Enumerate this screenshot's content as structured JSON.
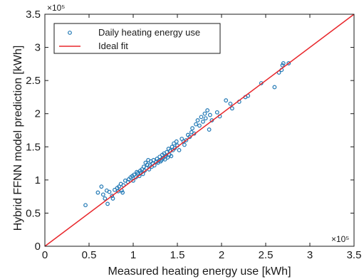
{
  "chart_data": {
    "type": "scatter",
    "xlabel": "Measured heating energy use [kWh]",
    "ylabel": "Hybrid FFNN model prediction [kWh]",
    "xlim": [
      0,
      3.5
    ],
    "ylim": [
      0,
      3.5
    ],
    "x_ticks": [
      "0",
      "0.5",
      "1",
      "1.5",
      "2",
      "2.5",
      "3",
      "3.5"
    ],
    "y_ticks": [
      "0",
      "0.5",
      "1",
      "1.5",
      "2",
      "2.5",
      "3",
      "3.5"
    ],
    "x_exponent": "×10⁵",
    "y_exponent": "×10⁵",
    "grid": false,
    "legend_position": "top-left",
    "series": [
      {
        "name": "Daily heating energy use",
        "marker": "circle",
        "color": "#1f77b4",
        "points": [
          [
            0.46,
            0.62
          ],
          [
            0.6,
            0.81
          ],
          [
            0.64,
            0.9
          ],
          [
            0.66,
            0.78
          ],
          [
            0.68,
            0.72
          ],
          [
            0.7,
            0.84
          ],
          [
            0.71,
            0.64
          ],
          [
            0.73,
            0.82
          ],
          [
            0.76,
            0.76
          ],
          [
            0.77,
            0.72
          ],
          [
            0.79,
            0.85
          ],
          [
            0.82,
            0.88
          ],
          [
            0.83,
            0.83
          ],
          [
            0.84,
            0.9
          ],
          [
            0.86,
            0.94
          ],
          [
            0.87,
            0.84
          ],
          [
            0.88,
            0.81
          ],
          [
            0.89,
            0.92
          ],
          [
            0.91,
            0.99
          ],
          [
            0.94,
            0.97
          ],
          [
            0.95,
            1.01
          ],
          [
            0.97,
            1.04
          ],
          [
            0.99,
            1.06
          ],
          [
            1.0,
            0.99
          ],
          [
            1.01,
            1.08
          ],
          [
            1.03,
            1.04
          ],
          [
            1.04,
            1.12
          ],
          [
            1.05,
            1.1
          ],
          [
            1.07,
            1.06
          ],
          [
            1.08,
            1.14
          ],
          [
            1.09,
            1.11
          ],
          [
            1.1,
            1.16
          ],
          [
            1.11,
            1.09
          ],
          [
            1.12,
            1.2
          ],
          [
            1.13,
            1.14
          ],
          [
            1.14,
            1.26
          ],
          [
            1.15,
            1.18
          ],
          [
            1.16,
            1.23
          ],
          [
            1.17,
            1.3
          ],
          [
            1.18,
            1.16
          ],
          [
            1.19,
            1.22
          ],
          [
            1.2,
            1.28
          ],
          [
            1.21,
            1.2
          ],
          [
            1.22,
            1.25
          ],
          [
            1.23,
            1.3
          ],
          [
            1.24,
            1.22
          ],
          [
            1.26,
            1.27
          ],
          [
            1.27,
            1.32
          ],
          [
            1.28,
            1.26
          ],
          [
            1.29,
            1.29
          ],
          [
            1.3,
            1.35
          ],
          [
            1.31,
            1.28
          ],
          [
            1.32,
            1.3
          ],
          [
            1.33,
            1.38
          ],
          [
            1.34,
            1.33
          ],
          [
            1.35,
            1.4
          ],
          [
            1.36,
            1.31
          ],
          [
            1.37,
            1.36
          ],
          [
            1.38,
            1.42
          ],
          [
            1.39,
            1.34
          ],
          [
            1.4,
            1.47
          ],
          [
            1.41,
            1.38
          ],
          [
            1.42,
            1.44
          ],
          [
            1.43,
            1.36
          ],
          [
            1.44,
            1.5
          ],
          [
            1.45,
            1.45
          ],
          [
            1.46,
            1.55
          ],
          [
            1.47,
            1.48
          ],
          [
            1.49,
            1.58
          ],
          [
            1.5,
            1.52
          ],
          [
            1.52,
            1.45
          ],
          [
            1.55,
            1.62
          ],
          [
            1.57,
            1.58
          ],
          [
            1.58,
            1.53
          ],
          [
            1.6,
            1.6
          ],
          [
            1.62,
            1.68
          ],
          [
            1.64,
            1.65
          ],
          [
            1.66,
            1.72
          ],
          [
            1.67,
            1.78
          ],
          [
            1.69,
            1.7
          ],
          [
            1.71,
            1.84
          ],
          [
            1.73,
            1.9
          ],
          [
            1.75,
            1.82
          ],
          [
            1.77,
            1.95
          ],
          [
            1.79,
            1.88
          ],
          [
            1.81,
            2.0
          ],
          [
            1.82,
            1.93
          ],
          [
            1.84,
            2.05
          ],
          [
            1.86,
            1.76
          ],
          [
            1.87,
            1.98
          ],
          [
            1.89,
            1.9
          ],
          [
            1.95,
            2.02
          ],
          [
            1.98,
            1.96
          ],
          [
            2.05,
            2.2
          ],
          [
            2.1,
            2.15
          ],
          [
            2.12,
            2.08
          ],
          [
            2.2,
            2.18
          ],
          [
            2.27,
            2.25
          ],
          [
            2.3,
            2.27
          ],
          [
            2.45,
            2.46
          ],
          [
            2.6,
            2.4
          ],
          [
            2.65,
            2.62
          ],
          [
            2.68,
            2.66
          ],
          [
            2.69,
            2.73
          ],
          [
            2.7,
            2.76
          ],
          [
            2.76,
            2.76
          ]
        ]
      },
      {
        "name": "Ideal fit",
        "line": true,
        "color": "#e8262b",
        "points": [
          [
            0,
            0
          ],
          [
            3.5,
            3.5
          ]
        ]
      }
    ]
  }
}
